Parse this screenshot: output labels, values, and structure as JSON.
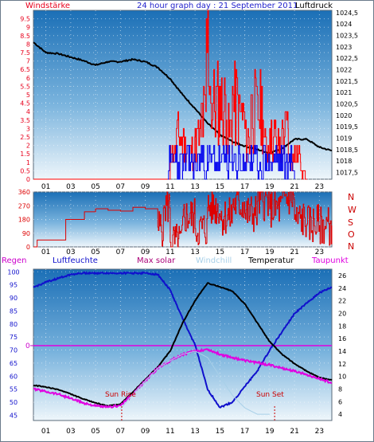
{
  "page": {
    "background": "#ffffff",
    "border": "#6a7a8a"
  },
  "top_panel": {
    "left_label": "Windstärke",
    "center_label": "24 hour graph day : 21 September 2011",
    "right_label": "Luftdruck",
    "left_label_color": "#e8001c",
    "center_label_color": "#2222cc",
    "right_label_color": "#000000"
  },
  "mid_panel": {
    "compass_labels": [
      "N",
      "W",
      "S",
      "O",
      "N"
    ],
    "compass_color": "#cc0000"
  },
  "bottom_panel": {
    "headers": [
      {
        "key": "regen",
        "label": "Regen",
        "color": "#cc00cc"
      },
      {
        "key": "luftfeuchte",
        "label": "Luftfeuchte",
        "color": "#1010cc"
      },
      {
        "key": "max_solar",
        "label": "Max solar",
        "color": "#aa0077"
      },
      {
        "key": "windchill",
        "label": "Windchill",
        "color": "#a8d0e8"
      },
      {
        "key": "temperatur",
        "label": "Temperatur",
        "color": "#000000"
      },
      {
        "key": "taupunkt",
        "label": "Taupunkt",
        "color": "#e000e0"
      }
    ],
    "annotations": [
      {
        "key": "sunrise",
        "label": "Sun Rise",
        "color": "#cc0000"
      },
      {
        "key": "sunset",
        "label": "Sun Set",
        "color": "#cc0000"
      }
    ]
  },
  "x_ticks": [
    "01",
    "03",
    "05",
    "07",
    "09",
    "11",
    "13",
    "15",
    "17",
    "19",
    "21",
    "23"
  ],
  "chart_data": [
    {
      "type": "line",
      "name": "wind_and_pressure",
      "xlim": [
        0,
        24
      ],
      "ylim_left": [
        0,
        10
      ],
      "left_ticks": [
        "0",
        "0.5",
        "1",
        "1.5",
        "2",
        "2.5",
        "3",
        "3.5",
        "4",
        "4.5",
        "5",
        "5.5",
        "6",
        "6.5",
        "7",
        "7.5",
        "8",
        "8.5",
        "9",
        "9.5"
      ],
      "ylim_right": [
        1017.2,
        1024.6
      ],
      "right_ticks": [
        "1017,5",
        "1018",
        "1018,5",
        "1019",
        "1019,5",
        "1020",
        "1020,5",
        "1021",
        "1021,5",
        "1022",
        "1022,5",
        "1023",
        "1023,5",
        "1024",
        "1024,5"
      ],
      "grid": true,
      "series": [
        {
          "key": "luftdruck",
          "color": "#000000",
          "points": [
            [
              0,
              1023.2
            ],
            [
              1,
              1022.75
            ],
            [
              2,
              1022.7
            ],
            [
              3,
              1022.55
            ],
            [
              4,
              1022.4
            ],
            [
              5,
              1022.2
            ],
            [
              6,
              1022.35
            ],
            [
              7,
              1022.35
            ],
            [
              8,
              1022.45
            ],
            [
              9,
              1022.35
            ],
            [
              10,
              1022.1
            ],
            [
              11,
              1021.6
            ],
            [
              12,
              1020.9
            ],
            [
              13,
              1020.3
            ],
            [
              14,
              1019.65
            ],
            [
              15,
              1019.15
            ],
            [
              16,
              1018.85
            ],
            [
              17,
              1018.65
            ],
            [
              18,
              1018.5
            ],
            [
              19,
              1018.35
            ],
            [
              20,
              1018.55
            ],
            [
              21,
              1018.95
            ],
            [
              22,
              1018.95
            ],
            [
              23,
              1018.6
            ],
            [
              24,
              1018.45
            ]
          ]
        },
        {
          "key": "wind_gust",
          "color": "#ff0000",
          "points": [
            [
              0,
              0
            ],
            [
              10.8,
              0
            ],
            [
              11,
              2
            ],
            [
              11.5,
              3
            ],
            [
              12,
              2.5
            ],
            [
              12.5,
              2
            ],
            [
              13,
              3
            ],
            [
              13.5,
              4.5
            ],
            [
              13.9,
              9.5
            ],
            [
              14.2,
              5.5
            ],
            [
              15,
              5.5
            ],
            [
              15.5,
              3.5
            ],
            [
              16,
              5.5
            ],
            [
              16.5,
              4.5
            ],
            [
              17,
              3
            ],
            [
              17.5,
              5
            ],
            [
              18,
              5
            ],
            [
              18.5,
              2.5
            ],
            [
              19,
              3
            ],
            [
              19.5,
              2.5
            ],
            [
              20,
              3.5
            ],
            [
              20.5,
              1.5
            ],
            [
              21,
              2
            ],
            [
              21.5,
              0.5
            ],
            [
              22,
              0
            ]
          ]
        },
        {
          "key": "wind_avg",
          "color": "#0000ee",
          "points": [
            [
              10.8,
              0
            ],
            [
              11,
              1
            ],
            [
              11.5,
              2
            ],
            [
              12,
              0.5
            ],
            [
              12.5,
              2
            ],
            [
              13,
              1
            ],
            [
              13.5,
              2
            ],
            [
              14,
              0.5
            ],
            [
              14.5,
              2
            ],
            [
              15,
              1
            ],
            [
              15.5,
              2
            ],
            [
              16,
              0.5
            ],
            [
              16.5,
              2
            ],
            [
              17,
              1
            ],
            [
              17.5,
              2
            ],
            [
              18,
              0.5
            ],
            [
              18.5,
              2
            ],
            [
              19,
              1
            ],
            [
              19.5,
              2
            ],
            [
              20,
              0.5
            ],
            [
              20.5,
              1
            ],
            [
              21,
              0
            ]
          ]
        }
      ]
    },
    {
      "type": "line",
      "name": "wind_direction",
      "xlim": [
        0,
        24
      ],
      "ylim": [
        0,
        360
      ],
      "ticks": [
        "0",
        "90",
        "180",
        "270",
        "360"
      ],
      "grid": true,
      "series": [
        {
          "key": "direction",
          "color": "#dd0000",
          "points": [
            [
              0,
              0
            ],
            [
              0.3,
              45
            ],
            [
              2.5,
              45
            ],
            [
              2.6,
              180
            ],
            [
              4,
              180
            ],
            [
              4.1,
              230
            ],
            [
              5,
              250
            ],
            [
              6,
              240
            ],
            [
              7,
              235
            ],
            [
              8,
              260
            ],
            [
              9,
              250
            ],
            [
              10,
              130
            ],
            [
              10.5,
              270
            ],
            [
              11,
              30
            ],
            [
              12,
              200
            ],
            [
              13,
              120
            ],
            [
              14,
              260
            ],
            [
              15,
              200
            ],
            [
              16,
              280
            ],
            [
              17,
              220
            ],
            [
              18,
              300
            ],
            [
              19,
              250
            ],
            [
              20,
              320
            ],
            [
              21,
              180
            ],
            [
              22,
              150
            ],
            [
              23,
              140
            ],
            [
              24,
              140
            ]
          ]
        }
      ]
    },
    {
      "type": "line",
      "name": "humidity_temperature",
      "xlim": [
        0,
        24
      ],
      "ylim_left": [
        43,
        101
      ],
      "left_ticks": [
        "45",
        "50",
        "55",
        "60",
        "65",
        "70",
        "75",
        "80",
        "85",
        "90",
        "95",
        "100"
      ],
      "ylim_right": [
        3,
        27
      ],
      "right_ticks": [
        "4",
        "6",
        "8",
        "10",
        "12",
        "14",
        "16",
        "18",
        "20",
        "22",
        "24",
        "26"
      ],
      "regen_marker": "0",
      "sunrise_hour": 7.1,
      "sunset_hour": 19.4,
      "grid": true,
      "series": [
        {
          "key": "luftfeuchte",
          "color": "#1010cc",
          "points": [
            [
              0,
              94
            ],
            [
              1,
              96
            ],
            [
              2,
              97.5
            ],
            [
              3,
              99
            ],
            [
              4,
              99.5
            ],
            [
              5,
              99.5
            ],
            [
              6,
              99.5
            ],
            [
              7,
              99.5
            ],
            [
              8,
              99.5
            ],
            [
              9,
              99.5
            ],
            [
              10,
              99
            ],
            [
              11,
              93
            ],
            [
              12,
              82
            ],
            [
              13,
              72
            ],
            [
              14,
              55
            ],
            [
              15,
              48
            ],
            [
              16,
              50
            ],
            [
              17,
              56
            ],
            [
              18,
              62
            ],
            [
              19,
              70
            ],
            [
              20,
              77
            ],
            [
              21,
              84
            ],
            [
              22,
              88
            ],
            [
              23,
              92
            ],
            [
              24,
              94
            ]
          ]
        },
        {
          "key": "temperatur",
          "color": "#000000",
          "points": [
            [
              0,
              8.6
            ],
            [
              1,
              8.3
            ],
            [
              2,
              7.9
            ],
            [
              3,
              7.2
            ],
            [
              4,
              6.4
            ],
            [
              5,
              5.8
            ],
            [
              6,
              5.3
            ],
            [
              7,
              5.6
            ],
            [
              8,
              7.5
            ],
            [
              9,
              9.5
            ],
            [
              10,
              11.5
            ],
            [
              11,
              14
            ],
            [
              12,
              18.5
            ],
            [
              13,
              22
            ],
            [
              14,
              24.8
            ],
            [
              15,
              24.2
            ],
            [
              16,
              23.5
            ],
            [
              17,
              21.5
            ],
            [
              18,
              18.5
            ],
            [
              19,
              15.5
            ],
            [
              20,
              13.5
            ],
            [
              21,
              12
            ],
            [
              22,
              10.8
            ],
            [
              23,
              9.8
            ],
            [
              24,
              9.4
            ]
          ]
        },
        {
          "key": "taupunkt",
          "color": "#e000e0",
          "points": [
            [
              0,
              8
            ],
            [
              1,
              7.6
            ],
            [
              2,
              7.2
            ],
            [
              3,
              6.5
            ],
            [
              4,
              5.8
            ],
            [
              5,
              5.3
            ],
            [
              6,
              5.1
            ],
            [
              7,
              5.4
            ],
            [
              8,
              7.2
            ],
            [
              9,
              9.3
            ],
            [
              10,
              11.3
            ],
            [
              11,
              12.5
            ],
            [
              12,
              13.5
            ],
            [
              13,
              14
            ],
            [
              14,
              14.3
            ],
            [
              15,
              13.5
            ],
            [
              16,
              13
            ],
            [
              17,
              12.5
            ],
            [
              18,
              12.2
            ],
            [
              19,
              11.8
            ],
            [
              20,
              11.3
            ],
            [
              21,
              10.8
            ],
            [
              22,
              10.3
            ],
            [
              23,
              9.6
            ],
            [
              24,
              9.0
            ]
          ]
        },
        {
          "key": "windchill",
          "color": "#a8d0e8",
          "points": [
            [
              7,
              4.8
            ],
            [
              8,
              7.2
            ],
            [
              9,
              9.3
            ],
            [
              10,
              11.3
            ],
            [
              11,
              12.5
            ],
            [
              12,
              13.5
            ],
            [
              13,
              14
            ],
            [
              14,
              13
            ],
            [
              15,
              10
            ],
            [
              16,
              7
            ],
            [
              17,
              5
            ],
            [
              18,
              4
            ],
            [
              19,
              4
            ]
          ]
        }
      ]
    }
  ]
}
